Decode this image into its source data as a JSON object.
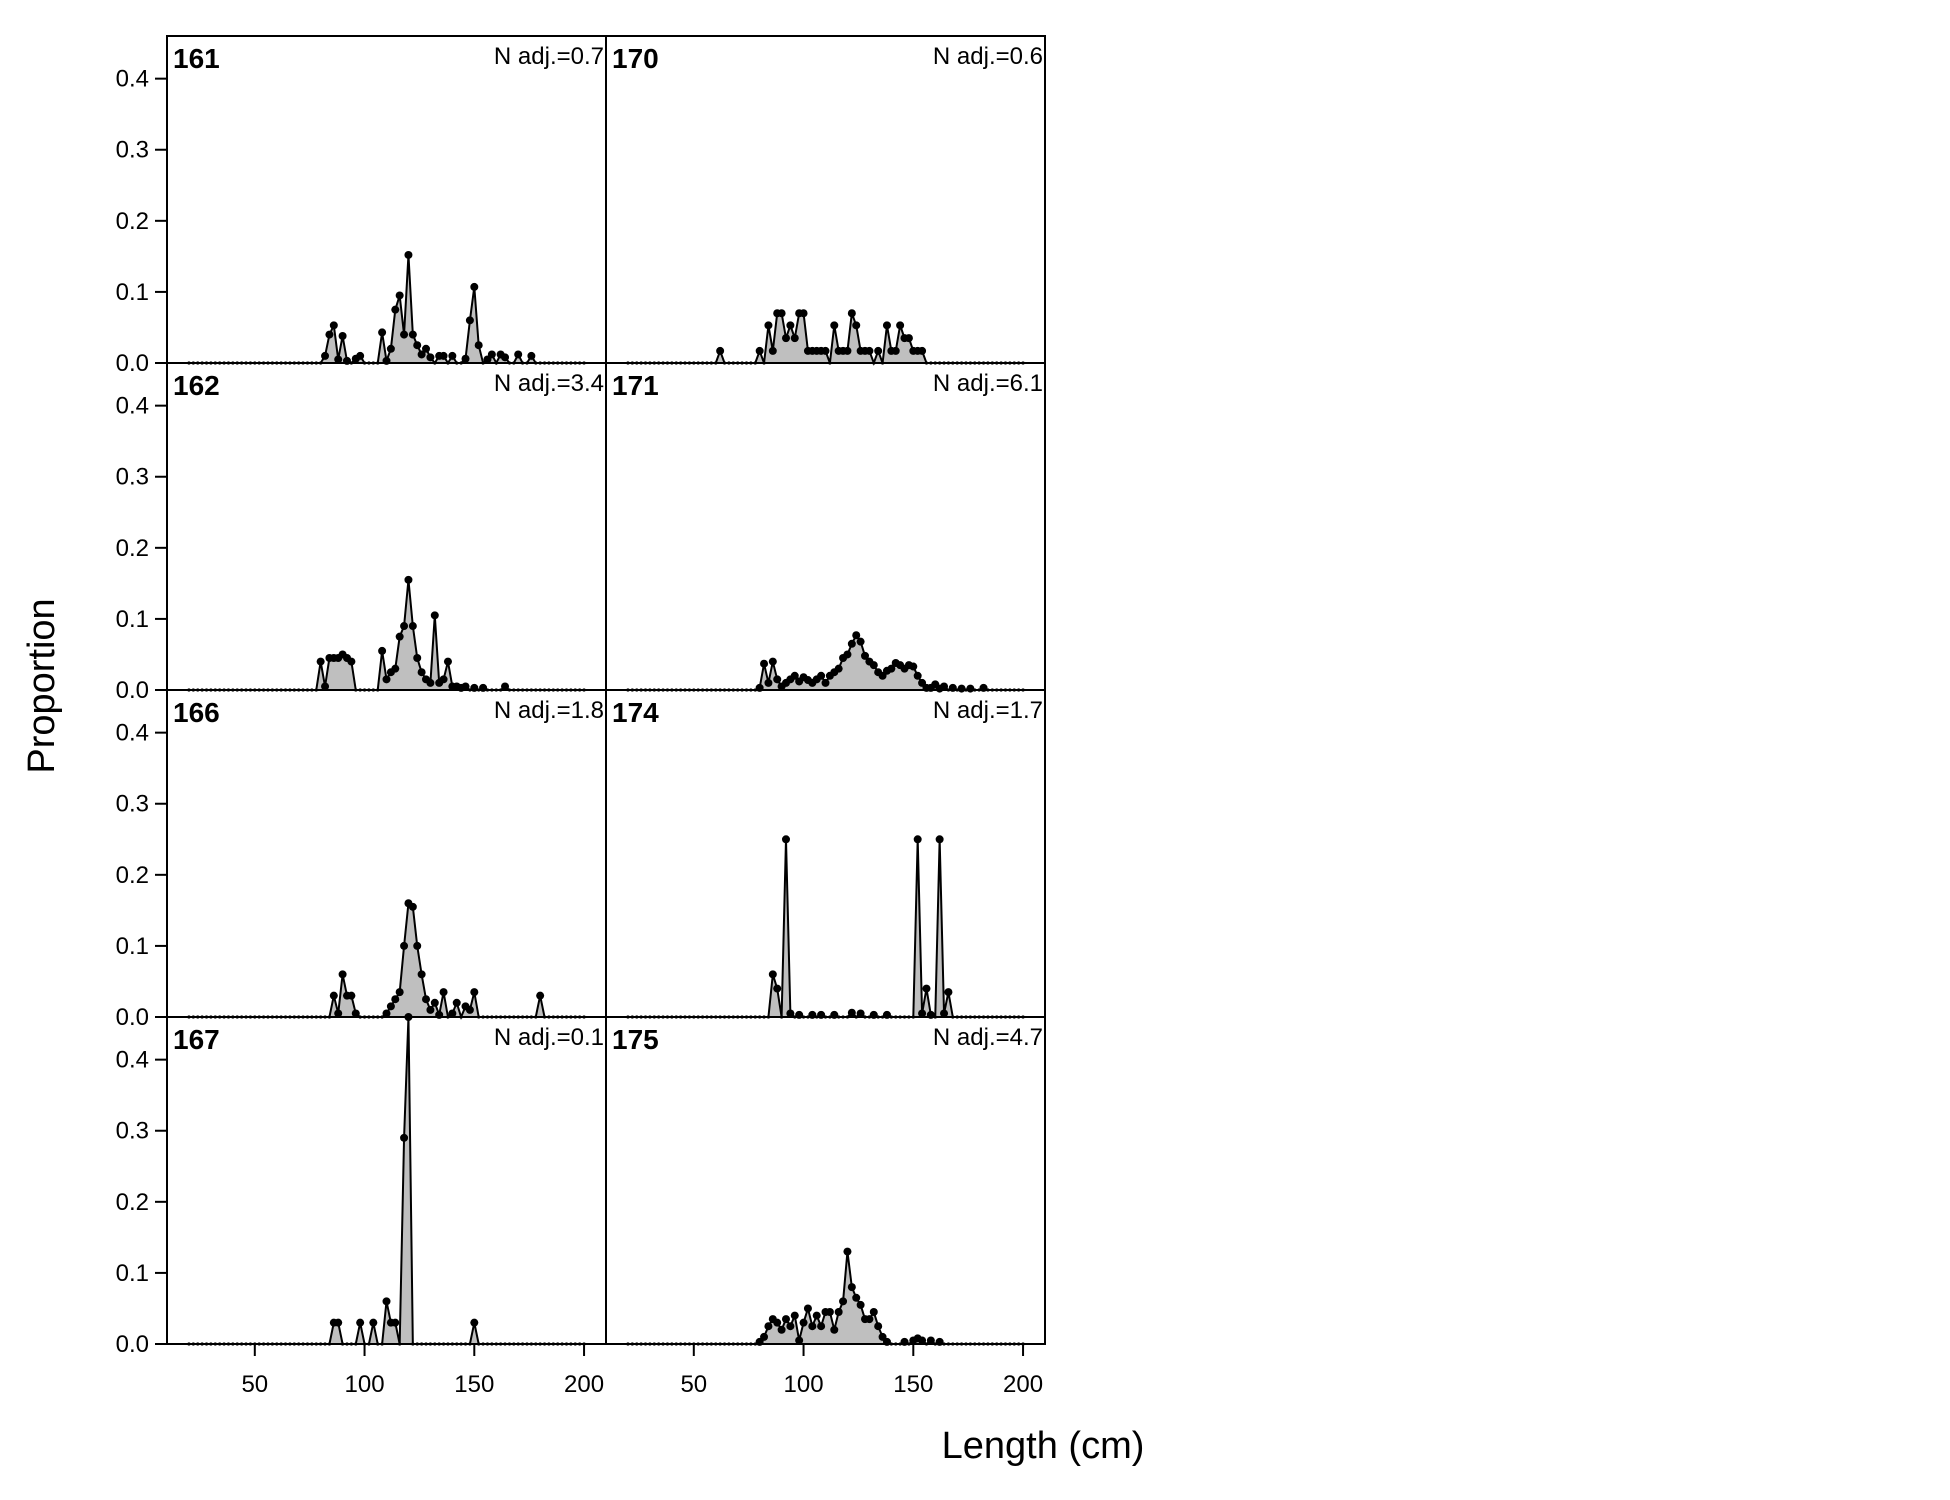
{
  "chart_data": {
    "type": "area",
    "xlabel": "Length (cm)",
    "ylabel": "Proportion",
    "xlim": [
      10,
      210
    ],
    "ylim": [
      0,
      0.46
    ],
    "x_ticks": [
      50,
      100,
      150,
      200
    ],
    "x_tick_labels": [
      "50",
      "100",
      "150",
      "200"
    ],
    "y_ticks": [
      0.0,
      0.1,
      0.2,
      0.3,
      0.4
    ],
    "y_tick_labels": [
      "0.0",
      "0.1",
      "0.2",
      "0.3",
      "0.4"
    ],
    "layout": {
      "rows": 4,
      "cols": 2
    },
    "bin_start": 20,
    "bin_end": 200,
    "bin_step": 2,
    "colors": {
      "fill": "#bfbfbf",
      "line": "#000000"
    },
    "panels": [
      {
        "id": "161",
        "nadj": "N adj.=0.7",
        "row": 0,
        "col": 0,
        "points": [
          [
            82,
            0.01
          ],
          [
            84,
            0.04
          ],
          [
            86,
            0.053
          ],
          [
            88,
            0.005
          ],
          [
            90,
            0.038
          ],
          [
            92,
            0.003
          ],
          [
            96,
            0.006
          ],
          [
            98,
            0.01
          ],
          [
            108,
            0.043
          ],
          [
            110,
            0.003
          ],
          [
            112,
            0.02
          ],
          [
            114,
            0.075
          ],
          [
            116,
            0.095
          ],
          [
            118,
            0.04
          ],
          [
            120,
            0.152
          ],
          [
            122,
            0.04
          ],
          [
            124,
            0.025
          ],
          [
            126,
            0.012
          ],
          [
            128,
            0.02
          ],
          [
            130,
            0.008
          ],
          [
            134,
            0.01
          ],
          [
            136,
            0.01
          ],
          [
            140,
            0.01
          ],
          [
            146,
            0.006
          ],
          [
            148,
            0.06
          ],
          [
            150,
            0.107
          ],
          [
            152,
            0.025
          ],
          [
            156,
            0.005
          ],
          [
            158,
            0.012
          ],
          [
            162,
            0.012
          ],
          [
            164,
            0.008
          ],
          [
            170,
            0.012
          ],
          [
            176,
            0.01
          ]
        ]
      },
      {
        "id": "170",
        "nadj": "N adj.=0.6",
        "row": 0,
        "col": 1,
        "points": [
          [
            62,
            0.017
          ],
          [
            80,
            0.017
          ],
          [
            84,
            0.053
          ],
          [
            86,
            0.017
          ],
          [
            88,
            0.07
          ],
          [
            90,
            0.07
          ],
          [
            92,
            0.035
          ],
          [
            94,
            0.053
          ],
          [
            96,
            0.035
          ],
          [
            98,
            0.07
          ],
          [
            100,
            0.07
          ],
          [
            102,
            0.017
          ],
          [
            104,
            0.017
          ],
          [
            106,
            0.017
          ],
          [
            108,
            0.017
          ],
          [
            110,
            0.017
          ],
          [
            114,
            0.053
          ],
          [
            116,
            0.017
          ],
          [
            118,
            0.017
          ],
          [
            120,
            0.017
          ],
          [
            122,
            0.07
          ],
          [
            124,
            0.053
          ],
          [
            126,
            0.017
          ],
          [
            128,
            0.017
          ],
          [
            130,
            0.017
          ],
          [
            134,
            0.017
          ],
          [
            138,
            0.053
          ],
          [
            140,
            0.017
          ],
          [
            142,
            0.017
          ],
          [
            144,
            0.053
          ],
          [
            146,
            0.035
          ],
          [
            148,
            0.035
          ],
          [
            150,
            0.017
          ],
          [
            152,
            0.017
          ],
          [
            154,
            0.017
          ]
        ]
      },
      {
        "id": "162",
        "nadj": "N adj.=3.4",
        "row": 1,
        "col": 0,
        "points": [
          [
            80,
            0.04
          ],
          [
            82,
            0.005
          ],
          [
            84,
            0.045
          ],
          [
            86,
            0.045
          ],
          [
            88,
            0.045
          ],
          [
            90,
            0.05
          ],
          [
            92,
            0.045
          ],
          [
            94,
            0.04
          ],
          [
            108,
            0.055
          ],
          [
            110,
            0.015
          ],
          [
            112,
            0.025
          ],
          [
            114,
            0.03
          ],
          [
            116,
            0.075
          ],
          [
            118,
            0.09
          ],
          [
            120,
            0.155
          ],
          [
            122,
            0.09
          ],
          [
            124,
            0.045
          ],
          [
            126,
            0.025
          ],
          [
            128,
            0.015
          ],
          [
            130,
            0.01
          ],
          [
            132,
            0.105
          ],
          [
            134,
            0.01
          ],
          [
            136,
            0.015
          ],
          [
            138,
            0.04
          ],
          [
            140,
            0.005
          ],
          [
            142,
            0.005
          ],
          [
            144,
            0.003
          ],
          [
            146,
            0.005
          ],
          [
            150,
            0.003
          ],
          [
            154,
            0.003
          ],
          [
            164,
            0.005
          ]
        ]
      },
      {
        "id": "171",
        "nadj": "N adj.=6.1",
        "row": 1,
        "col": 1,
        "points": [
          [
            80,
            0.003
          ],
          [
            82,
            0.037
          ],
          [
            84,
            0.01
          ],
          [
            86,
            0.04
          ],
          [
            88,
            0.015
          ],
          [
            90,
            0.005
          ],
          [
            92,
            0.01
          ],
          [
            94,
            0.015
          ],
          [
            96,
            0.02
          ],
          [
            98,
            0.012
          ],
          [
            100,
            0.018
          ],
          [
            102,
            0.014
          ],
          [
            104,
            0.01
          ],
          [
            106,
            0.015
          ],
          [
            108,
            0.02
          ],
          [
            110,
            0.01
          ],
          [
            112,
            0.02
          ],
          [
            114,
            0.025
          ],
          [
            116,
            0.03
          ],
          [
            118,
            0.045
          ],
          [
            120,
            0.05
          ],
          [
            122,
            0.065
          ],
          [
            124,
            0.077
          ],
          [
            126,
            0.068
          ],
          [
            128,
            0.048
          ],
          [
            130,
            0.04
          ],
          [
            132,
            0.035
          ],
          [
            134,
            0.025
          ],
          [
            136,
            0.02
          ],
          [
            138,
            0.027
          ],
          [
            140,
            0.03
          ],
          [
            142,
            0.038
          ],
          [
            144,
            0.035
          ],
          [
            146,
            0.03
          ],
          [
            148,
            0.035
          ],
          [
            150,
            0.033
          ],
          [
            152,
            0.02
          ],
          [
            154,
            0.01
          ],
          [
            156,
            0.003
          ],
          [
            158,
            0.003
          ],
          [
            160,
            0.008
          ],
          [
            162,
            0.002
          ],
          [
            164,
            0.005
          ],
          [
            168,
            0.003
          ],
          [
            172,
            0.002
          ],
          [
            176,
            0.002
          ],
          [
            182,
            0.003
          ]
        ]
      },
      {
        "id": "166",
        "nadj": "N adj.=1.8",
        "row": 2,
        "col": 0,
        "points": [
          [
            86,
            0.03
          ],
          [
            88,
            0.005
          ],
          [
            90,
            0.06
          ],
          [
            92,
            0.03
          ],
          [
            94,
            0.03
          ],
          [
            96,
            0.005
          ],
          [
            110,
            0.005
          ],
          [
            112,
            0.015
          ],
          [
            114,
            0.025
          ],
          [
            116,
            0.035
          ],
          [
            118,
            0.1
          ],
          [
            120,
            0.16
          ],
          [
            122,
            0.155
          ],
          [
            124,
            0.1
          ],
          [
            126,
            0.06
          ],
          [
            128,
            0.025
          ],
          [
            130,
            0.01
          ],
          [
            132,
            0.02
          ],
          [
            134,
            0.003
          ],
          [
            136,
            0.035
          ],
          [
            140,
            0.005
          ],
          [
            142,
            0.02
          ],
          [
            146,
            0.015
          ],
          [
            148,
            0.01
          ],
          [
            150,
            0.035
          ],
          [
            180,
            0.03
          ]
        ]
      },
      {
        "id": "174",
        "nadj": "N adj.=1.7",
        "row": 2,
        "col": 1,
        "points": [
          [
            86,
            0.06
          ],
          [
            88,
            0.04
          ],
          [
            92,
            0.25
          ],
          [
            94,
            0.005
          ],
          [
            98,
            0.003
          ],
          [
            104,
            0.003
          ],
          [
            108,
            0.003
          ],
          [
            114,
            0.003
          ],
          [
            122,
            0.006
          ],
          [
            126,
            0.005
          ],
          [
            132,
            0.003
          ],
          [
            138,
            0.003
          ],
          [
            152,
            0.25
          ],
          [
            154,
            0.005
          ],
          [
            156,
            0.04
          ],
          [
            158,
            0.003
          ],
          [
            162,
            0.25
          ],
          [
            164,
            0.005
          ],
          [
            166,
            0.035
          ]
        ]
      },
      {
        "id": "167",
        "nadj": "N adj.=0.1",
        "row": 3,
        "col": 0,
        "points": [
          [
            86,
            0.03
          ],
          [
            88,
            0.03
          ],
          [
            98,
            0.03
          ],
          [
            104,
            0.03
          ],
          [
            110,
            0.06
          ],
          [
            112,
            0.03
          ],
          [
            114,
            0.03
          ],
          [
            118,
            0.29
          ],
          [
            120,
            0.46
          ],
          [
            150,
            0.03
          ]
        ]
      },
      {
        "id": "175",
        "nadj": "N adj.=4.7",
        "row": 3,
        "col": 1,
        "points": [
          [
            80,
            0.003
          ],
          [
            82,
            0.01
          ],
          [
            84,
            0.025
          ],
          [
            86,
            0.035
          ],
          [
            88,
            0.03
          ],
          [
            90,
            0.02
          ],
          [
            92,
            0.035
          ],
          [
            94,
            0.025
          ],
          [
            96,
            0.04
          ],
          [
            98,
            0.005
          ],
          [
            100,
            0.03
          ],
          [
            102,
            0.05
          ],
          [
            104,
            0.025
          ],
          [
            106,
            0.04
          ],
          [
            108,
            0.025
          ],
          [
            110,
            0.045
          ],
          [
            112,
            0.045
          ],
          [
            114,
            0.02
          ],
          [
            116,
            0.045
          ],
          [
            118,
            0.06
          ],
          [
            120,
            0.13
          ],
          [
            122,
            0.08
          ],
          [
            124,
            0.065
          ],
          [
            126,
            0.055
          ],
          [
            128,
            0.035
          ],
          [
            130,
            0.035
          ],
          [
            132,
            0.045
          ],
          [
            134,
            0.025
          ],
          [
            136,
            0.01
          ],
          [
            138,
            0.003
          ],
          [
            146,
            0.003
          ],
          [
            150,
            0.005
          ],
          [
            152,
            0.008
          ],
          [
            154,
            0.005
          ],
          [
            158,
            0.005
          ],
          [
            162,
            0.003
          ]
        ]
      }
    ]
  }
}
